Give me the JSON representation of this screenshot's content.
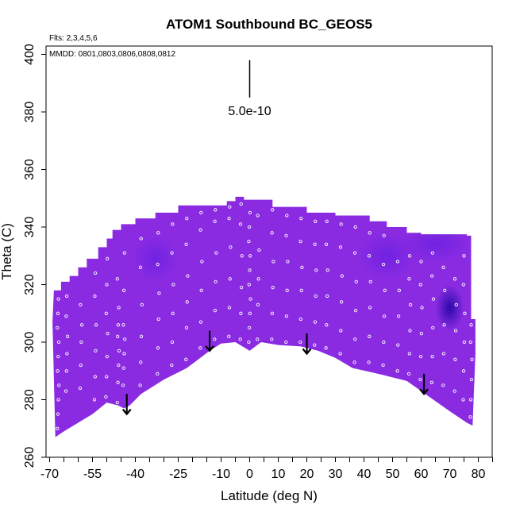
{
  "chart_data": {
    "type": "heatmap",
    "title": "ATOM1 Southbound BC_GEOS5",
    "flights_note": "Flts: 2,3,4,5,6",
    "dates_note": "MMDD: 0801,0803,0806,0808,0812",
    "xlabel": "Latitude (deg N)",
    "ylabel": "Theta (C)",
    "xlim": [
      -70,
      85
    ],
    "ylim": [
      260,
      402
    ],
    "x_ticks": [
      -70,
      -55,
      -40,
      -25,
      -10,
      0,
      10,
      20,
      30,
      40,
      50,
      60,
      70,
      80
    ],
    "y_ticks": [
      260,
      280,
      300,
      320,
      340,
      360,
      380,
      400
    ],
    "scale_bar_label": "5.0e-10",
    "scale_bar": {
      "x": 0,
      "y_top": 398,
      "y_bottom": 385
    },
    "colors": {
      "field": "#8a2be2",
      "field_dark": "#5a1ae0",
      "field_darkest": "#2a0aa8",
      "points": "#ffffff",
      "arrows": "#000000"
    },
    "lower_boundary": [
      [
        -68,
        267
      ],
      [
        -65,
        269
      ],
      [
        -55,
        275
      ],
      [
        -50,
        279
      ],
      [
        -46,
        278
      ],
      [
        -44,
        277
      ],
      [
        -42,
        278
      ],
      [
        -38,
        282
      ],
      [
        -30,
        287
      ],
      [
        -22,
        291
      ],
      [
        -14,
        297
      ],
      [
        -10,
        299.5
      ],
      [
        -5,
        300
      ],
      [
        0,
        297
      ],
      [
        4,
        300
      ],
      [
        10,
        299
      ],
      [
        18,
        298.5
      ],
      [
        24,
        297
      ],
      [
        30,
        294.5
      ],
      [
        36,
        291
      ],
      [
        45,
        289
      ],
      [
        55,
        286.5
      ],
      [
        60,
        283
      ],
      [
        70,
        276
      ],
      [
        76,
        272
      ],
      [
        78,
        271
      ]
    ],
    "upper_boundary": [
      [
        -69,
        307
      ],
      [
        -68.5,
        318
      ],
      [
        -66,
        318
      ],
      [
        -66,
        321
      ],
      [
        -63,
        321
      ],
      [
        -63,
        323
      ],
      [
        -60,
        323
      ],
      [
        -60,
        326
      ],
      [
        -57,
        326
      ],
      [
        -57,
        329
      ],
      [
        -53,
        329
      ],
      [
        -53,
        333
      ],
      [
        -50,
        333
      ],
      [
        -50,
        336
      ],
      [
        -48,
        336
      ],
      [
        -48,
        339
      ],
      [
        -45,
        339
      ],
      [
        -45,
        341
      ],
      [
        -40,
        341
      ],
      [
        -40,
        343
      ],
      [
        -33,
        343
      ],
      [
        -33,
        345
      ],
      [
        -25,
        345
      ],
      [
        -25,
        347.5
      ],
      [
        -8,
        347.5
      ],
      [
        -8,
        349
      ],
      [
        -5,
        349
      ],
      [
        -5,
        350.5
      ],
      [
        -2,
        350.5
      ],
      [
        -2,
        349.5
      ],
      [
        8,
        349.5
      ],
      [
        8,
        347
      ],
      [
        20,
        347
      ],
      [
        20,
        345
      ],
      [
        30,
        345
      ],
      [
        30,
        344
      ],
      [
        42,
        344
      ],
      [
        42,
        342
      ],
      [
        48,
        342
      ],
      [
        48,
        340
      ],
      [
        55,
        340
      ],
      [
        55,
        338
      ],
      [
        60,
        338
      ],
      [
        60,
        337.5
      ],
      [
        76,
        337.5
      ],
      [
        76,
        337
      ],
      [
        77.5,
        337
      ],
      [
        77.5,
        308
      ],
      [
        79,
        308
      ],
      [
        79,
        296
      ]
    ],
    "dark_patches": [
      {
        "lat": 70,
        "theta": 312,
        "rlat": 5,
        "rtheta": 8,
        "level": "darkest"
      },
      {
        "lat": 65,
        "theta": 334,
        "rlat": 12,
        "rtheta": 6,
        "level": "dark"
      },
      {
        "lat": 48,
        "theta": 330,
        "rlat": 10,
        "rtheta": 8,
        "level": "dark"
      },
      {
        "lat": -33,
        "theta": 329,
        "rlat": 8,
        "rtheta": 8,
        "level": "dark"
      }
    ],
    "arrows": [
      {
        "lat": -43,
        "theta_top": 282,
        "theta_bottom": 275
      },
      {
        "lat": -14,
        "theta_top": 304,
        "theta_bottom": 297
      },
      {
        "lat": 20,
        "theta_top": 303,
        "theta_bottom": 296
      },
      {
        "lat": 61,
        "theta_top": 289,
        "theta_bottom": 282
      }
    ],
    "point_columns": [
      {
        "lat": -67,
        "theta": [
          270,
          275,
          280,
          285,
          290,
          295,
          300,
          305,
          310,
          315
        ]
      },
      {
        "lat": -64,
        "theta": [
          283,
          290,
          296,
          302,
          309,
          316
        ]
      },
      {
        "lat": -59,
        "theta": [
          284,
          292,
          300,
          306,
          313
        ]
      },
      {
        "lat": -54,
        "theta": [
          280,
          288,
          297,
          306,
          316,
          324
        ]
      },
      {
        "lat": -50,
        "theta": [
          281,
          288,
          295,
          303,
          310,
          320,
          329
        ]
      },
      {
        "lat": -46,
        "theta": [
          279,
          286,
          292,
          297,
          302,
          306,
          312,
          322
        ]
      },
      {
        "lat": -44,
        "theta": [
          285,
          291,
          296,
          301,
          306,
          318,
          331
        ]
      },
      {
        "lat": -38,
        "theta": [
          285,
          293,
          302,
          313,
          326,
          336
        ]
      },
      {
        "lat": -32,
        "theta": [
          289,
          298,
          308,
          317,
          327,
          338
        ]
      },
      {
        "lat": -27,
        "theta": [
          292,
          300,
          310,
          320,
          331,
          341
        ]
      },
      {
        "lat": -22,
        "theta": [
          294,
          305,
          314,
          323,
          334,
          343
        ]
      },
      {
        "lat": -17,
        "theta": [
          298,
          307,
          318,
          328,
          339,
          345
        ]
      },
      {
        "lat": -12,
        "theta": [
          301,
          311,
          321,
          331,
          342,
          346
        ]
      },
      {
        "lat": -7,
        "theta": [
          302,
          312,
          322,
          333,
          343,
          347
        ]
      },
      {
        "lat": -3,
        "theta": [
          301,
          310,
          319,
          330,
          341,
          348
        ]
      },
      {
        "lat": 0,
        "theta": [
          300,
          305,
          310,
          315,
          320,
          325,
          330,
          335,
          340,
          345
        ]
      },
      {
        "lat": 3,
        "theta": [
          301,
          313,
          322,
          332,
          344
        ]
      },
      {
        "lat": 8,
        "theta": [
          301,
          310,
          319,
          328,
          338,
          346
        ]
      },
      {
        "lat": 13,
        "theta": [
          300,
          309,
          318,
          328,
          337,
          344
        ]
      },
      {
        "lat": 18,
        "theta": [
          300,
          308,
          318,
          326,
          335,
          343
        ]
      },
      {
        "lat": 23,
        "theta": [
          299,
          307,
          316,
          325,
          334,
          342
        ]
      },
      {
        "lat": 27,
        "theta": [
          298,
          306,
          316,
          325,
          334,
          342
        ]
      },
      {
        "lat": 32,
        "theta": [
          296,
          304,
          314,
          323,
          333,
          341
        ]
      },
      {
        "lat": 37,
        "theta": [
          293,
          301,
          311,
          321,
          331,
          340
        ]
      },
      {
        "lat": 42,
        "theta": [
          293,
          302,
          312,
          321,
          330,
          338
        ]
      },
      {
        "lat": 47,
        "theta": [
          292,
          300,
          309,
          318,
          327,
          337
        ]
      },
      {
        "lat": 52,
        "theta": [
          290,
          299,
          309,
          318,
          328
        ]
      },
      {
        "lat": 56,
        "theta": [
          289,
          296,
          304,
          313,
          322,
          330
        ]
      },
      {
        "lat": 60,
        "theta": [
          287,
          295,
          303,
          312,
          320,
          328
        ]
      },
      {
        "lat": 64,
        "theta": [
          286,
          295,
          305,
          315,
          323,
          331
        ]
      },
      {
        "lat": 68,
        "theta": [
          285,
          296,
          306,
          318,
          326
        ]
      },
      {
        "lat": 72,
        "theta": [
          283,
          294,
          304,
          313,
          322
        ]
      },
      {
        "lat": 75,
        "theta": [
          280,
          290,
          300,
          310,
          320,
          330
        ]
      },
      {
        "lat": 77.5,
        "theta": [
          274,
          280,
          287,
          294,
          300,
          306
        ]
      }
    ]
  }
}
